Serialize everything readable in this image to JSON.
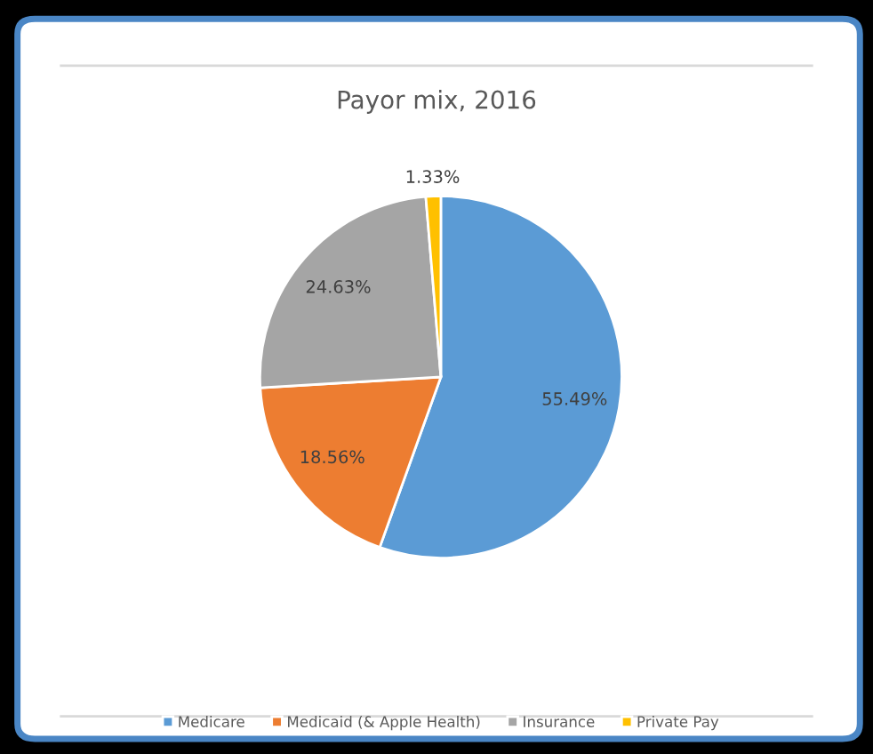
{
  "chart_data": {
    "type": "pie",
    "title": "Payor mix, 2016",
    "categories": [
      "Medicare",
      "Medicaid (& Apple Health)",
      "Insurance",
      "Private Pay"
    ],
    "values": [
      55.49,
      18.56,
      24.63,
      1.33
    ],
    "colors": [
      "#5b9bd5",
      "#ed7d31",
      "#a5a5a5",
      "#ffc000"
    ],
    "value_labels": [
      "55.49%",
      "18.56%",
      "24.63%",
      "1.33%"
    ],
    "legend": "bottom"
  }
}
